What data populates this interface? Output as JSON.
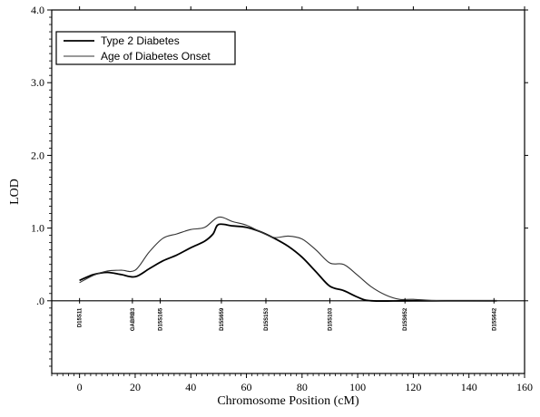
{
  "chart_data": {
    "type": "line",
    "xlabel": "Chromosome Position (cM)",
    "ylabel": "LOD",
    "xlim": [
      -10,
      160
    ],
    "ylim": [
      -1,
      4
    ],
    "x_ticks": [
      0,
      20,
      40,
      60,
      80,
      100,
      120,
      140,
      160
    ],
    "x_tick_labels": [
      "0",
      "20",
      "40",
      "60",
      "80",
      "100",
      "120",
      "140",
      "160"
    ],
    "y_ticks": [
      0,
      1,
      2,
      3,
      4
    ],
    "y_tick_labels": [
      ".0",
      "1.0",
      "2.0",
      "3.0",
      "4.0"
    ],
    "legend_position": "top-left",
    "series": [
      {
        "name": "Type 2 Diabetes",
        "color": "#000000",
        "width": 1.8,
        "points": [
          [
            0,
            0.28
          ],
          [
            5,
            0.36
          ],
          [
            10,
            0.39
          ],
          [
            15,
            0.36
          ],
          [
            20,
            0.33
          ],
          [
            25,
            0.44
          ],
          [
            30,
            0.55
          ],
          [
            35,
            0.63
          ],
          [
            40,
            0.73
          ],
          [
            45,
            0.82
          ],
          [
            48,
            0.92
          ],
          [
            50,
            1.05
          ],
          [
            55,
            1.03
          ],
          [
            60,
            1.01
          ],
          [
            65,
            0.95
          ],
          [
            70,
            0.86
          ],
          [
            75,
            0.75
          ],
          [
            80,
            0.6
          ],
          [
            85,
            0.4
          ],
          [
            90,
            0.2
          ],
          [
            95,
            0.14
          ],
          [
            100,
            0.05
          ],
          [
            105,
            0.0
          ],
          [
            120,
            0.0
          ],
          [
            150,
            0.0
          ]
        ]
      },
      {
        "name": "Age of Diabetes Onset",
        "color": "#333333",
        "width": 1.1,
        "points": [
          [
            0,
            0.25
          ],
          [
            5,
            0.35
          ],
          [
            10,
            0.41
          ],
          [
            15,
            0.42
          ],
          [
            20,
            0.42
          ],
          [
            25,
            0.67
          ],
          [
            30,
            0.86
          ],
          [
            35,
            0.92
          ],
          [
            40,
            0.98
          ],
          [
            45,
            1.01
          ],
          [
            50,
            1.15
          ],
          [
            55,
            1.09
          ],
          [
            60,
            1.04
          ],
          [
            65,
            0.95
          ],
          [
            70,
            0.87
          ],
          [
            75,
            0.89
          ],
          [
            80,
            0.85
          ],
          [
            85,
            0.7
          ],
          [
            90,
            0.52
          ],
          [
            95,
            0.5
          ],
          [
            100,
            0.35
          ],
          [
            105,
            0.19
          ],
          [
            110,
            0.08
          ],
          [
            115,
            0.02
          ],
          [
            120,
            0.02
          ],
          [
            130,
            0.0
          ],
          [
            150,
            0.0
          ]
        ]
      }
    ],
    "markers": [
      {
        "label": "D15S11",
        "x": 0
      },
      {
        "label": "GABRB3",
        "x": 19
      },
      {
        "label": "D15S165",
        "x": 29
      },
      {
        "label": "D15S659",
        "x": 51
      },
      {
        "label": "D15S153",
        "x": 67
      },
      {
        "label": "D15S103",
        "x": 90
      },
      {
        "label": "D15S652",
        "x": 117
      },
      {
        "label": "D15S642",
        "x": 149
      }
    ]
  }
}
